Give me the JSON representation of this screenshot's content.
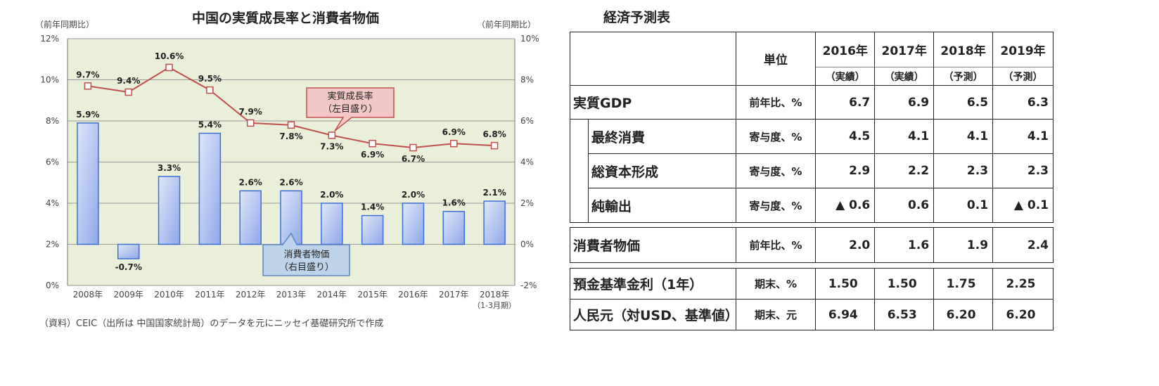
{
  "chart_data": {
    "type": "bar+line",
    "title": "中国の実質成長率と消費者物価",
    "left_axis_label": "（前年同期比）",
    "right_axis_label": "（前年同期比）",
    "left_ticks": [
      "12%",
      "10%",
      "8%",
      "6%",
      "4%",
      "2%",
      "0%"
    ],
    "right_ticks": [
      "10%",
      "8%",
      "6%",
      "4%",
      "2%",
      "0%",
      "-2%"
    ],
    "ylim_left": [
      0,
      12
    ],
    "ylim_right": [
      -2,
      10
    ],
    "categories": [
      "2008年",
      "2009年",
      "2010年",
      "2011年",
      "2012年",
      "2013年",
      "2014年",
      "2015年",
      "2016年",
      "2017年",
      "2018年"
    ],
    "last_category_sub": "（1-3月期）",
    "series": [
      {
        "name": "実質成長率（左目盛り）",
        "kind": "line",
        "axis": "left",
        "values": [
          9.7,
          9.4,
          10.6,
          9.5,
          7.9,
          7.8,
          7.3,
          6.9,
          6.7,
          6.9,
          6.8
        ],
        "labels": [
          "9.7%",
          "9.4%",
          "10.6%",
          "9.5%",
          "7.9%",
          "7.8%",
          "7.3%",
          "6.9%",
          "6.7%",
          "6.9%",
          "6.8%"
        ]
      },
      {
        "name": "消費者物価（右目盛り）",
        "kind": "bar",
        "axis": "right",
        "values": [
          5.9,
          -0.7,
          3.3,
          5.4,
          2.6,
          2.6,
          2.0,
          1.4,
          2.0,
          1.6,
          2.1
        ],
        "labels": [
          "5.9%",
          "-0.7%",
          "3.3%",
          "5.4%",
          "2.6%",
          "2.6%",
          "2.0%",
          "1.4%",
          "2.0%",
          "1.6%",
          "2.1%"
        ]
      }
    ],
    "callout_line": [
      "実質成長率",
      "（左目盛り）"
    ],
    "callout_bar": [
      "消費者物価",
      "（右目盛り）"
    ],
    "source_note": "（資料）CEIC（出所は 中国国家統計局）のデータを元にニッセイ基礎研究所で作成",
    "colors": {
      "plot_bg": "#eaefd9",
      "line": "#c0504d",
      "bar_stroke": "#3c6fd8",
      "bar_fill_top": "#c8d4f2",
      "bar_fill_bottom": "#8ea8e8",
      "callout_line_bg": "#f2c7c6",
      "callout_bar_bg": "#bdd3ea"
    }
  },
  "table": {
    "title": "経済予測表",
    "unit_header": "単位",
    "years": [
      "2016年",
      "2017年",
      "2018年",
      "2019年"
    ],
    "year_types": [
      "（実績）",
      "（実績）",
      "（予測）",
      "（予測）"
    ],
    "rows": [
      {
        "label": "実質GDP",
        "unit": "前年比、%",
        "values": [
          "6.7",
          "6.9",
          "6.5",
          "6.3"
        ]
      },
      {
        "label": "最終消費",
        "unit": "寄与度、%",
        "values": [
          "4.5",
          "4.1",
          "4.1",
          "4.1"
        ]
      },
      {
        "label": "総資本形成",
        "unit": "寄与度、%",
        "values": [
          "2.9",
          "2.2",
          "2.3",
          "2.3"
        ]
      },
      {
        "label": "純輸出",
        "unit": "寄与度、%",
        "values": [
          "▲ 0.6",
          "0.6",
          "0.1",
          "▲ 0.1"
        ]
      },
      {
        "label": "消費者物価",
        "unit": "前年比、%",
        "values": [
          "2.0",
          "1.6",
          "1.9",
          "2.4"
        ]
      },
      {
        "label": "預金基準金利（1年）",
        "unit": "期末、%",
        "values": [
          "1.50",
          "1.50",
          "1.75",
          "2.25"
        ]
      },
      {
        "label": "人民元（対USD、基準値）",
        "unit": "期末、元",
        "values": [
          "6.94",
          "6.53",
          "6.20",
          "6.20"
        ]
      }
    ]
  }
}
